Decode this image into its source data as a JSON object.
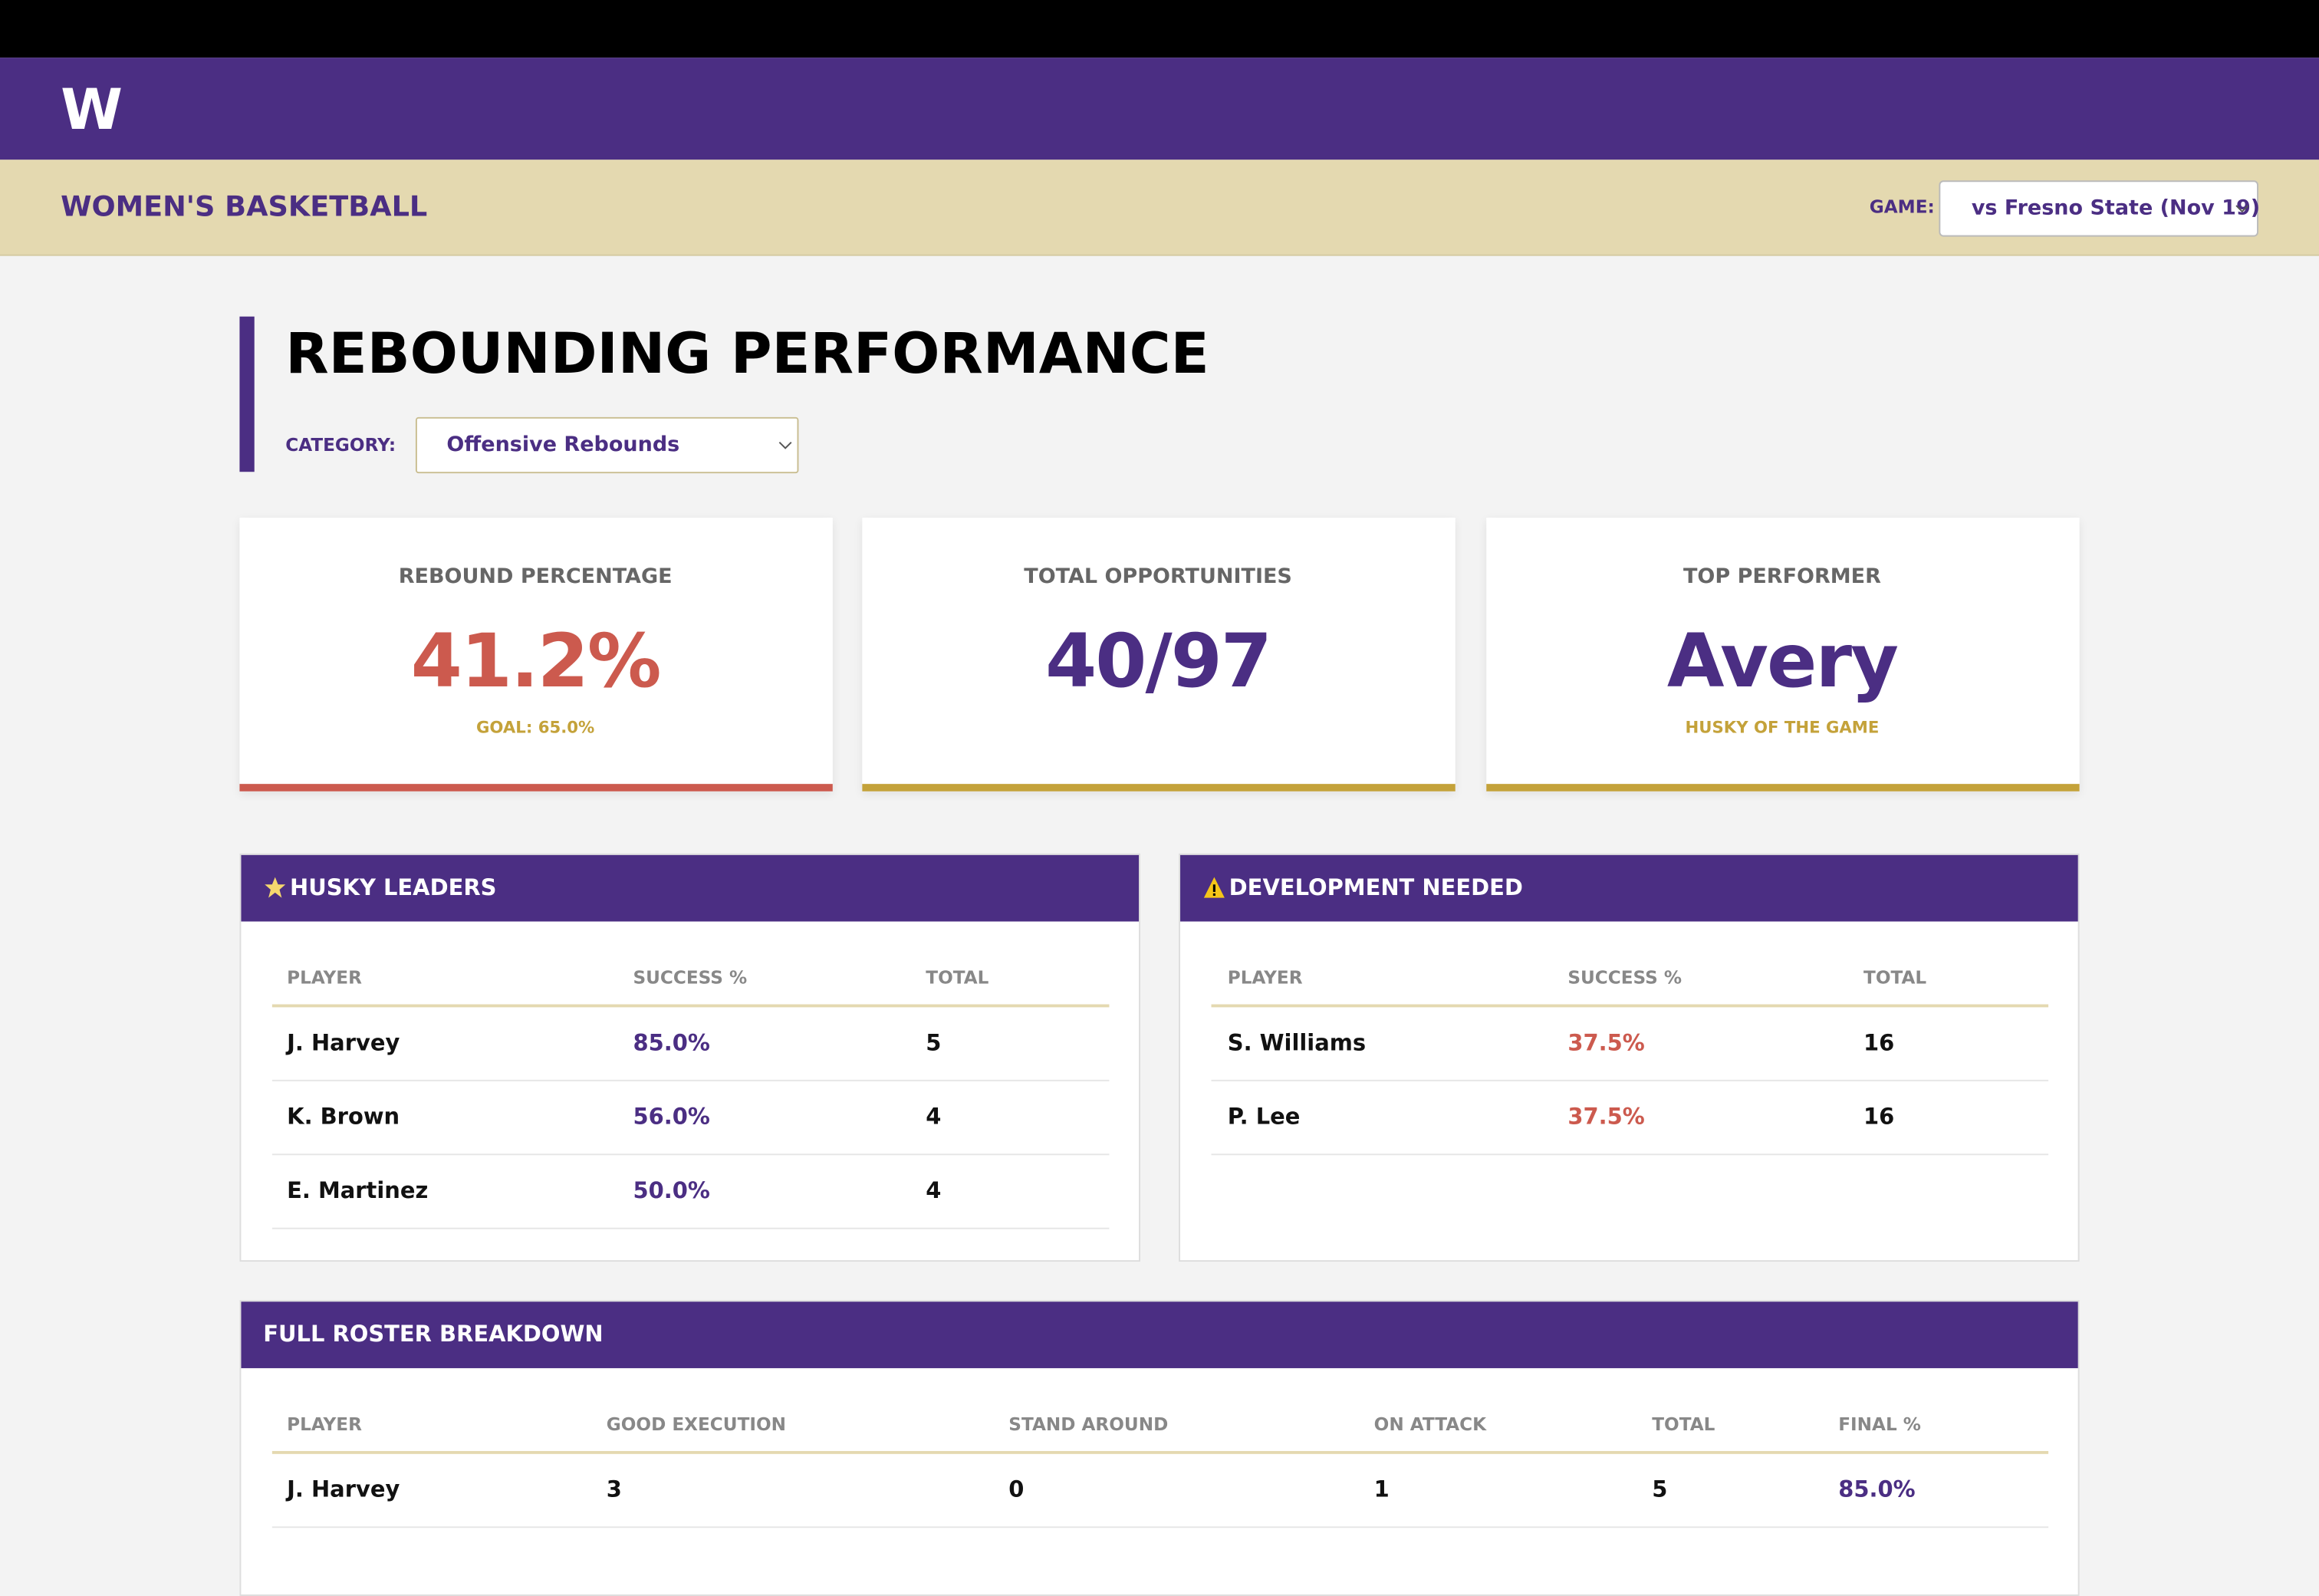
{
  "header": {
    "logo": "W",
    "section": "WOMEN'S BASKETBALL",
    "game_label": "GAME:",
    "game_selected": "vs Fresno State (Nov 19)"
  },
  "page": {
    "title": "REBOUNDING PERFORMANCE",
    "category_label": "CATEGORY:",
    "category_selected": "Offensive Rebounds"
  },
  "kpis": [
    {
      "label": "REBOUND PERCENTAGE",
      "value": "41.2%",
      "note": "GOAL: 65.0%"
    },
    {
      "label": "TOTAL OPPORTUNITIES",
      "value": "40/97"
    },
    {
      "label": "TOP PERFORMER",
      "value": "Avery",
      "note": "HUSKY OF THE GAME"
    }
  ],
  "leaders": {
    "title": "HUSKY LEADERS",
    "columns": [
      "PLAYER",
      "SUCCESS %",
      "TOTAL"
    ],
    "rows": [
      [
        "J. Harvey",
        "85.0%",
        "5"
      ],
      [
        "K. Brown",
        "56.0%",
        "4"
      ],
      [
        "E. Martinez",
        "50.0%",
        "4"
      ]
    ]
  },
  "development": {
    "title": "DEVELOPMENT NEEDED",
    "columns": [
      "PLAYER",
      "SUCCESS %",
      "TOTAL"
    ],
    "rows": [
      [
        "S. Williams",
        "37.5%",
        "16"
      ],
      [
        "P. Lee",
        "37.5%",
        "16"
      ]
    ]
  },
  "roster": {
    "title": "FULL ROSTER BREAKDOWN",
    "columns": [
      "PLAYER",
      "GOOD EXECUTION",
      "STAND AROUND",
      "ON ATTACK",
      "TOTAL",
      "FINAL %"
    ],
    "rows": [
      [
        "J. Harvey",
        "3",
        "0",
        "1",
        "5",
        "85.0%"
      ]
    ]
  }
}
